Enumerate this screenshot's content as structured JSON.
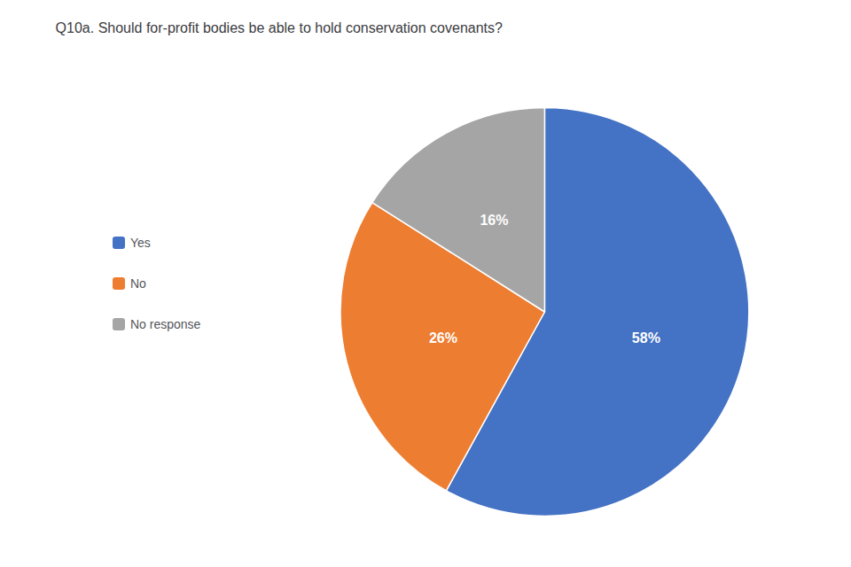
{
  "chart_data": {
    "type": "pie",
    "title": "Q10a. Should for-profit bodies be able to hold conservation covenants?",
    "categories": [
      "Yes",
      "No",
      "No response"
    ],
    "values": [
      58,
      26,
      16
    ],
    "value_labels": [
      "58%",
      "26%",
      "16%"
    ],
    "colors": [
      "#4472C4",
      "#ED7D31",
      "#A5A5A5"
    ],
    "data_labels": true,
    "legend": "left"
  }
}
